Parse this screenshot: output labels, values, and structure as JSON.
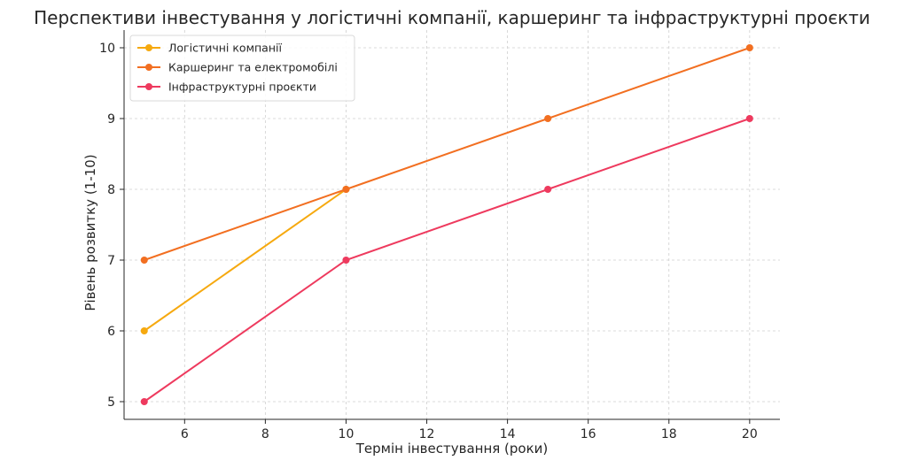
{
  "chart_data": {
    "type": "line",
    "title": "Перспективи інвестування у логістичні компанії, каршеринг та інфраструктурні проєкти",
    "xlabel": "Термін інвестування (роки)",
    "ylabel": "Рівень розвитку (1-10)",
    "xlim": [
      4.5,
      20.75
    ],
    "ylim": [
      4.75,
      10.25
    ],
    "xticks": [
      6,
      8,
      10,
      12,
      14,
      16,
      18,
      20
    ],
    "yticks": [
      5,
      6,
      7,
      8,
      9,
      10
    ],
    "grid": true,
    "legend_position": "top-left",
    "series": [
      {
        "name": "Логістичні компанії",
        "color": "#F6A90F",
        "x": [
          5,
          10
        ],
        "y": [
          6,
          8
        ]
      },
      {
        "name": "Каршеринг та електромобілі",
        "color": "#F26F21",
        "x": [
          5,
          10,
          15,
          20
        ],
        "y": [
          7,
          8,
          9,
          10
        ]
      },
      {
        "name": "Інфраструктурні проєкти",
        "color": "#EE3A5E",
        "x": [
          5,
          10,
          15,
          20
        ],
        "y": [
          5,
          7,
          8,
          9
        ]
      }
    ]
  }
}
